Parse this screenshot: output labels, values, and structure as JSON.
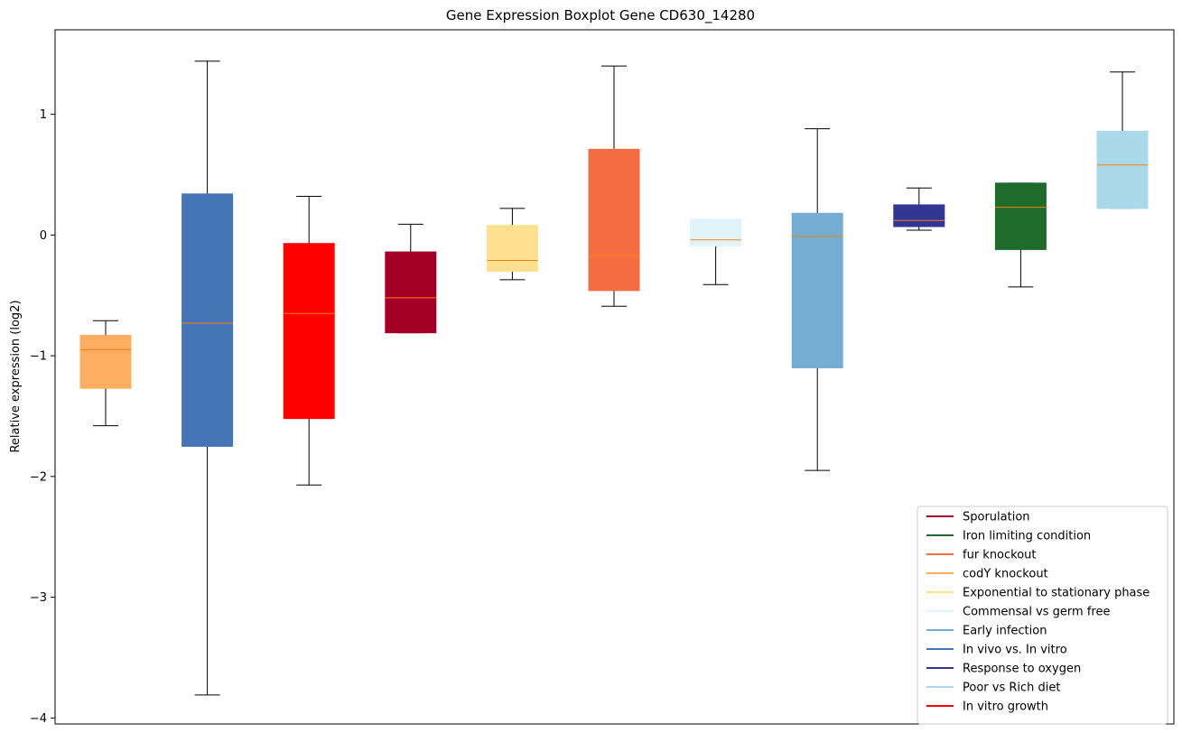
{
  "chart_data": {
    "type": "boxplot",
    "title": "Gene Expression Boxplot Gene CD630_14280",
    "xlabel": "",
    "ylabel": "Relative expression (log2)",
    "ylim": [
      -4.05,
      1.7
    ],
    "yticks": [
      {
        "value": 1,
        "label": "1"
      },
      {
        "value": 0,
        "label": "0"
      },
      {
        "value": -1,
        "label": "−1"
      },
      {
        "value": -2,
        "label": "−2"
      },
      {
        "value": -3,
        "label": "−3"
      },
      {
        "value": -4,
        "label": "−4"
      }
    ],
    "grid": false,
    "legend_position": "lower-right",
    "median_color": "#ff7f0e",
    "boxes": [
      {
        "name": "codY knockout",
        "color": "#fdae61",
        "whisker_low": -1.58,
        "q1": -1.27,
        "median": -0.95,
        "q3": -0.83,
        "whisker_high": -0.71
      },
      {
        "name": "In vivo vs. In vitro",
        "color": "#4575b4",
        "whisker_low": -3.81,
        "q1": -1.75,
        "median": -0.73,
        "q3": 0.34,
        "whisker_high": 1.44
      },
      {
        "name": "In vitro growth",
        "color": "#ff0000",
        "whisker_low": -2.07,
        "q1": -1.52,
        "median": -0.65,
        "q3": -0.07,
        "whisker_high": 0.32
      },
      {
        "name": "Sporulation",
        "color": "#a50026",
        "whisker_low": -0.81,
        "q1": -0.81,
        "median": -0.52,
        "q3": -0.14,
        "whisker_high": 0.09
      },
      {
        "name": "Exponential to stationary phase",
        "color": "#fee090",
        "whisker_low": -0.37,
        "q1": -0.3,
        "median": -0.21,
        "q3": 0.08,
        "whisker_high": 0.22
      },
      {
        "name": "fur knockout",
        "color": "#f46d43",
        "whisker_low": -0.59,
        "q1": -0.46,
        "median": -0.17,
        "q3": 0.71,
        "whisker_high": 1.4
      },
      {
        "name": "Commensal vs germ free",
        "color": "#e0f3f8",
        "whisker_low": -0.41,
        "q1": -0.09,
        "median": -0.04,
        "q3": 0.13,
        "whisker_high": 0.13
      },
      {
        "name": "Early infection",
        "color": "#74add1",
        "whisker_low": -1.95,
        "q1": -1.1,
        "median": -0.01,
        "q3": 0.18,
        "whisker_high": 0.88
      },
      {
        "name": "Response to oxygen",
        "color": "#313695",
        "whisker_low": 0.04,
        "q1": 0.07,
        "median": 0.12,
        "q3": 0.25,
        "whisker_high": 0.39
      },
      {
        "name": "Iron limiting condition",
        "color": "#1e6b2b",
        "whisker_low": -0.43,
        "q1": -0.12,
        "median": 0.23,
        "q3": 0.43,
        "whisker_high": 0.43
      },
      {
        "name": "Poor vs Rich diet",
        "color": "#abd9e9",
        "whisker_low": 0.22,
        "q1": 0.22,
        "median": 0.58,
        "q3": 0.86,
        "whisker_high": 1.35
      }
    ],
    "legend": [
      {
        "label": "Sporulation",
        "color": "#a50026"
      },
      {
        "label": "Iron limiting condition",
        "color": "#1e6b2b"
      },
      {
        "label": "fur knockout",
        "color": "#f46d43"
      },
      {
        "label": "codY knockout",
        "color": "#fdae61"
      },
      {
        "label": "Exponential to stationary phase",
        "color": "#fee090"
      },
      {
        "label": "Commensal vs germ free",
        "color": "#e0f3f8"
      },
      {
        "label": "Early infection",
        "color": "#74add1"
      },
      {
        "label": "In vivo vs. In vitro",
        "color": "#4575b4"
      },
      {
        "label": "Response to oxygen",
        "color": "#313695"
      },
      {
        "label": "Poor vs Rich diet",
        "color": "#abd9e9"
      },
      {
        "label": "In vitro growth",
        "color": "#ff0000"
      }
    ]
  }
}
